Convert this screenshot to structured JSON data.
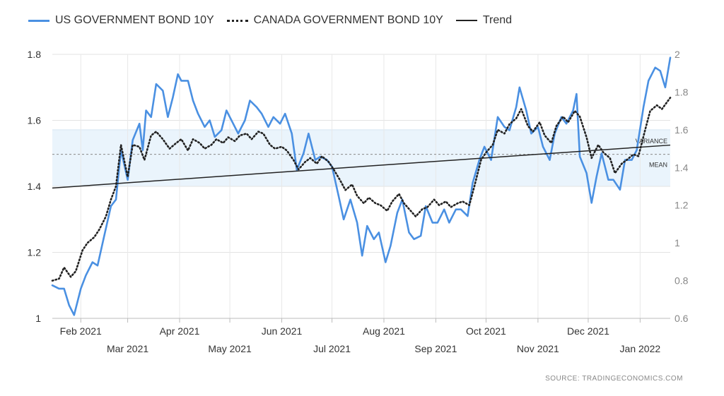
{
  "legend": {
    "us_label": "US GOVERNMENT BOND 10Y",
    "canada_label": "CANADA GOVERNMENT BOND 10Y",
    "trend_label": "Trend"
  },
  "source": "SOURCE:  TRADINGECONOMICS.COM",
  "annotations": {
    "variance": "VARIANCE",
    "mean": "MEAN"
  },
  "colors": {
    "us": "#4a90e2",
    "canada": "#222222",
    "trend": "#222222",
    "band": "#eaf4fc"
  },
  "chart_data": {
    "type": "line",
    "x_range": [
      "2021-01-15",
      "2022-01-19"
    ],
    "x_ticks_row1": [
      "Feb 2021",
      "Apr 2021",
      "Jun 2021",
      "Aug 2021",
      "Oct 2021",
      "Dec 2021"
    ],
    "x_ticks_row2": [
      "Mar 2021",
      "May 2021",
      "Jul 2021",
      "Sep 2021",
      "Nov 2021",
      "Jan 2022"
    ],
    "x_ticks_row1_dates": [
      "2021-02-01",
      "2021-04-01",
      "2021-06-01",
      "2021-08-01",
      "2021-10-01",
      "2021-12-01"
    ],
    "x_ticks_row2_dates": [
      "2021-03-01",
      "2021-05-01",
      "2021-07-01",
      "2021-09-01",
      "2021-11-01",
      "2022-01-01"
    ],
    "y_left": {
      "min": 1.0,
      "max": 1.8,
      "ticks": [
        "1",
        "1.2",
        "1.4",
        "1.6",
        "1.8"
      ]
    },
    "y_right": {
      "min": 0.6,
      "max": 2.0,
      "ticks": [
        "0.6",
        "0.8",
        "1",
        "1.2",
        "1.4",
        "1.6",
        "1.8",
        "2"
      ]
    },
    "band": {
      "axis": "right",
      "lower": 1.3,
      "upper": 1.6,
      "mean": 1.47
    },
    "trend": {
      "axis": "left",
      "points": [
        [
          "2021-01-15",
          1.395
        ],
        [
          "2022-01-19",
          1.525
        ]
      ]
    },
    "series": [
      {
        "name": "US GOVERNMENT BOND 10Y",
        "axis": "left",
        "style": "solid",
        "points": [
          [
            "2021-01-15",
            1.1
          ],
          [
            "2021-01-19",
            1.09
          ],
          [
            "2021-01-22",
            1.09
          ],
          [
            "2021-01-25",
            1.04
          ],
          [
            "2021-01-28",
            1.01
          ],
          [
            "2021-02-01",
            1.09
          ],
          [
            "2021-02-04",
            1.13
          ],
          [
            "2021-02-08",
            1.17
          ],
          [
            "2021-02-11",
            1.16
          ],
          [
            "2021-02-15",
            1.25
          ],
          [
            "2021-02-19",
            1.34
          ],
          [
            "2021-02-22",
            1.36
          ],
          [
            "2021-02-25",
            1.51
          ],
          [
            "2021-03-01",
            1.42
          ],
          [
            "2021-03-04",
            1.54
          ],
          [
            "2021-03-08",
            1.59
          ],
          [
            "2021-03-10",
            1.51
          ],
          [
            "2021-03-12",
            1.63
          ],
          [
            "2021-03-15",
            1.61
          ],
          [
            "2021-03-18",
            1.71
          ],
          [
            "2021-03-22",
            1.69
          ],
          [
            "2021-03-25",
            1.61
          ],
          [
            "2021-03-28",
            1.67
          ],
          [
            "2021-03-31",
            1.74
          ],
          [
            "2021-04-02",
            1.72
          ],
          [
            "2021-04-06",
            1.72
          ],
          [
            "2021-04-09",
            1.66
          ],
          [
            "2021-04-12",
            1.62
          ],
          [
            "2021-04-16",
            1.58
          ],
          [
            "2021-04-19",
            1.6
          ],
          [
            "2021-04-22",
            1.55
          ],
          [
            "2021-04-26",
            1.57
          ],
          [
            "2021-04-29",
            1.63
          ],
          [
            "2021-05-03",
            1.59
          ],
          [
            "2021-05-06",
            1.56
          ],
          [
            "2021-05-10",
            1.6
          ],
          [
            "2021-05-13",
            1.66
          ],
          [
            "2021-05-17",
            1.64
          ],
          [
            "2021-05-20",
            1.62
          ],
          [
            "2021-05-24",
            1.58
          ],
          [
            "2021-05-27",
            1.61
          ],
          [
            "2021-05-31",
            1.59
          ],
          [
            "2021-06-03",
            1.62
          ],
          [
            "2021-06-07",
            1.56
          ],
          [
            "2021-06-10",
            1.45
          ],
          [
            "2021-06-14",
            1.5
          ],
          [
            "2021-06-17",
            1.56
          ],
          [
            "2021-06-21",
            1.48
          ],
          [
            "2021-06-24",
            1.49
          ],
          [
            "2021-06-28",
            1.48
          ],
          [
            "2021-07-01",
            1.46
          ],
          [
            "2021-07-05",
            1.37
          ],
          [
            "2021-07-08",
            1.3
          ],
          [
            "2021-07-12",
            1.36
          ],
          [
            "2021-07-16",
            1.29
          ],
          [
            "2021-07-19",
            1.19
          ],
          [
            "2021-07-22",
            1.28
          ],
          [
            "2021-07-26",
            1.24
          ],
          [
            "2021-07-29",
            1.26
          ],
          [
            "2021-08-02",
            1.17
          ],
          [
            "2021-08-05",
            1.22
          ],
          [
            "2021-08-09",
            1.32
          ],
          [
            "2021-08-12",
            1.36
          ],
          [
            "2021-08-16",
            1.26
          ],
          [
            "2021-08-19",
            1.24
          ],
          [
            "2021-08-23",
            1.25
          ],
          [
            "2021-08-26",
            1.34
          ],
          [
            "2021-08-30",
            1.29
          ],
          [
            "2021-09-02",
            1.29
          ],
          [
            "2021-09-06",
            1.33
          ],
          [
            "2021-09-09",
            1.29
          ],
          [
            "2021-09-13",
            1.33
          ],
          [
            "2021-09-16",
            1.33
          ],
          [
            "2021-09-20",
            1.31
          ],
          [
            "2021-09-23",
            1.41
          ],
          [
            "2021-09-27",
            1.48
          ],
          [
            "2021-09-30",
            1.52
          ],
          [
            "2021-10-04",
            1.48
          ],
          [
            "2021-10-08",
            1.61
          ],
          [
            "2021-10-12",
            1.58
          ],
          [
            "2021-10-15",
            1.57
          ],
          [
            "2021-10-19",
            1.64
          ],
          [
            "2021-10-21",
            1.7
          ],
          [
            "2021-10-25",
            1.63
          ],
          [
            "2021-10-28",
            1.56
          ],
          [
            "2021-11-01",
            1.58
          ],
          [
            "2021-11-04",
            1.52
          ],
          [
            "2021-11-08",
            1.48
          ],
          [
            "2021-11-11",
            1.56
          ],
          [
            "2021-11-15",
            1.61
          ],
          [
            "2021-11-18",
            1.59
          ],
          [
            "2021-11-22",
            1.63
          ],
          [
            "2021-11-24",
            1.68
          ],
          [
            "2021-11-26",
            1.49
          ],
          [
            "2021-11-30",
            1.44
          ],
          [
            "2021-12-03",
            1.35
          ],
          [
            "2021-12-06",
            1.43
          ],
          [
            "2021-12-09",
            1.5
          ],
          [
            "2021-12-13",
            1.42
          ],
          [
            "2021-12-16",
            1.42
          ],
          [
            "2021-12-20",
            1.39
          ],
          [
            "2021-12-23",
            1.48
          ],
          [
            "2021-12-27",
            1.48
          ],
          [
            "2021-12-30",
            1.51
          ],
          [
            "2022-01-03",
            1.64
          ],
          [
            "2022-01-06",
            1.72
          ],
          [
            "2022-01-10",
            1.76
          ],
          [
            "2022-01-13",
            1.75
          ],
          [
            "2022-01-16",
            1.7
          ],
          [
            "2022-01-19",
            1.79
          ]
        ]
      },
      {
        "name": "CANADA GOVERNMENT BOND 10Y",
        "axis": "right",
        "style": "dotted",
        "points": [
          [
            "2021-01-15",
            0.8
          ],
          [
            "2021-01-19",
            0.81
          ],
          [
            "2021-01-22",
            0.87
          ],
          [
            "2021-01-26",
            0.82
          ],
          [
            "2021-01-29",
            0.85
          ],
          [
            "2021-02-02",
            0.96
          ],
          [
            "2021-02-05",
            1.0
          ],
          [
            "2021-02-09",
            1.03
          ],
          [
            "2021-02-12",
            1.07
          ],
          [
            "2021-02-16",
            1.14
          ],
          [
            "2021-02-19",
            1.23
          ],
          [
            "2021-02-22",
            1.3
          ],
          [
            "2021-02-25",
            1.52
          ],
          [
            "2021-03-01",
            1.35
          ],
          [
            "2021-03-04",
            1.52
          ],
          [
            "2021-03-08",
            1.51
          ],
          [
            "2021-03-11",
            1.44
          ],
          [
            "2021-03-15",
            1.57
          ],
          [
            "2021-03-18",
            1.59
          ],
          [
            "2021-03-22",
            1.55
          ],
          [
            "2021-03-26",
            1.5
          ],
          [
            "2021-03-30",
            1.53
          ],
          [
            "2021-04-02",
            1.55
          ],
          [
            "2021-04-06",
            1.49
          ],
          [
            "2021-04-09",
            1.55
          ],
          [
            "2021-04-13",
            1.53
          ],
          [
            "2021-04-16",
            1.5
          ],
          [
            "2021-04-20",
            1.52
          ],
          [
            "2021-04-23",
            1.55
          ],
          [
            "2021-04-27",
            1.53
          ],
          [
            "2021-04-30",
            1.56
          ],
          [
            "2021-05-04",
            1.54
          ],
          [
            "2021-05-07",
            1.57
          ],
          [
            "2021-05-11",
            1.58
          ],
          [
            "2021-05-14",
            1.55
          ],
          [
            "2021-05-18",
            1.59
          ],
          [
            "2021-05-21",
            1.58
          ],
          [
            "2021-05-25",
            1.52
          ],
          [
            "2021-05-28",
            1.5
          ],
          [
            "2021-06-01",
            1.51
          ],
          [
            "2021-06-04",
            1.49
          ],
          [
            "2021-06-08",
            1.44
          ],
          [
            "2021-06-11",
            1.39
          ],
          [
            "2021-06-15",
            1.43
          ],
          [
            "2021-06-18",
            1.45
          ],
          [
            "2021-06-22",
            1.42
          ],
          [
            "2021-06-25",
            1.46
          ],
          [
            "2021-06-29",
            1.43
          ],
          [
            "2021-07-02",
            1.39
          ],
          [
            "2021-07-06",
            1.33
          ],
          [
            "2021-07-09",
            1.28
          ],
          [
            "2021-07-13",
            1.31
          ],
          [
            "2021-07-16",
            1.25
          ],
          [
            "2021-07-20",
            1.21
          ],
          [
            "2021-07-23",
            1.24
          ],
          [
            "2021-07-27",
            1.21
          ],
          [
            "2021-07-30",
            1.2
          ],
          [
            "2021-08-03",
            1.17
          ],
          [
            "2021-08-06",
            1.22
          ],
          [
            "2021-08-10",
            1.26
          ],
          [
            "2021-08-13",
            1.21
          ],
          [
            "2021-08-17",
            1.17
          ],
          [
            "2021-08-20",
            1.14
          ],
          [
            "2021-08-24",
            1.18
          ],
          [
            "2021-08-27",
            1.19
          ],
          [
            "2021-08-31",
            1.23
          ],
          [
            "2021-09-03",
            1.2
          ],
          [
            "2021-09-07",
            1.22
          ],
          [
            "2021-09-10",
            1.19
          ],
          [
            "2021-09-14",
            1.21
          ],
          [
            "2021-09-17",
            1.22
          ],
          [
            "2021-09-21",
            1.2
          ],
          [
            "2021-09-24",
            1.3
          ],
          [
            "2021-09-28",
            1.44
          ],
          [
            "2021-10-01",
            1.48
          ],
          [
            "2021-10-05",
            1.52
          ],
          [
            "2021-10-08",
            1.6
          ],
          [
            "2021-10-12",
            1.58
          ],
          [
            "2021-10-15",
            1.63
          ],
          [
            "2021-10-19",
            1.66
          ],
          [
            "2021-10-22",
            1.71
          ],
          [
            "2021-10-26",
            1.62
          ],
          [
            "2021-10-29",
            1.59
          ],
          [
            "2021-11-02",
            1.64
          ],
          [
            "2021-11-05",
            1.57
          ],
          [
            "2021-11-09",
            1.53
          ],
          [
            "2021-11-12",
            1.62
          ],
          [
            "2021-11-16",
            1.67
          ],
          [
            "2021-11-19",
            1.64
          ],
          [
            "2021-11-23",
            1.7
          ],
          [
            "2021-11-26",
            1.67
          ],
          [
            "2021-11-30",
            1.56
          ],
          [
            "2021-12-03",
            1.45
          ],
          [
            "2021-12-07",
            1.52
          ],
          [
            "2021-12-10",
            1.48
          ],
          [
            "2021-12-14",
            1.45
          ],
          [
            "2021-12-17",
            1.37
          ],
          [
            "2021-12-21",
            1.42
          ],
          [
            "2021-12-24",
            1.44
          ],
          [
            "2021-12-28",
            1.47
          ],
          [
            "2021-12-31",
            1.46
          ],
          [
            "2022-01-04",
            1.6
          ],
          [
            "2022-01-07",
            1.7
          ],
          [
            "2022-01-11",
            1.73
          ],
          [
            "2022-01-14",
            1.71
          ],
          [
            "2022-01-19",
            1.77
          ]
        ]
      }
    ]
  }
}
